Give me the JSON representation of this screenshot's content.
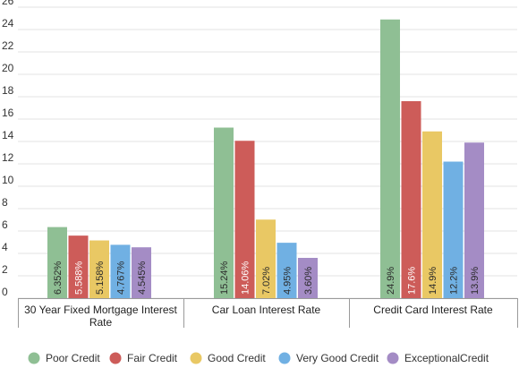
{
  "chart_data": {
    "type": "bar",
    "categories": [
      "30 Year Fixed Mortgage Interest Rate",
      "Car Loan Interest Rate",
      "Credit Card Interest Rate"
    ],
    "series": [
      {
        "name": "Poor Credit",
        "color": "#8fbf94",
        "values": [
          6.352,
          15.24,
          24.9
        ],
        "labels": [
          "6.352%",
          "15.24%",
          "24.9%"
        ]
      },
      {
        "name": "Fair Credit",
        "color": "#cd5c59",
        "values": [
          5.588,
          14.06,
          17.6
        ],
        "labels": [
          "5.588%",
          "14.06%",
          "17.6%"
        ]
      },
      {
        "name": "Good Credit",
        "color": "#e9c864",
        "values": [
          5.158,
          7.02,
          14.9
        ],
        "labels": [
          "5.158%",
          "7.02%",
          "14.9%"
        ]
      },
      {
        "name": "Very Good Credit",
        "color": "#70b0e3",
        "values": [
          4.767,
          4.95,
          12.2
        ],
        "labels": [
          "4.767%",
          "4.95%",
          "12.2%"
        ]
      },
      {
        "name": "ExceptionalCredit",
        "color": "#a48cc5",
        "values": [
          4.545,
          3.6,
          13.9
        ],
        "labels": [
          "4.545%",
          "3.60%",
          "13.9%"
        ]
      }
    ],
    "yticks": [
      0,
      2,
      4,
      6,
      8,
      10,
      12,
      14,
      16,
      18,
      20,
      22,
      24,
      26
    ],
    "ylim": [
      0,
      26
    ],
    "title": "",
    "xlabel": "",
    "ylabel": "",
    "grid": true,
    "legend_position": "bottom"
  }
}
